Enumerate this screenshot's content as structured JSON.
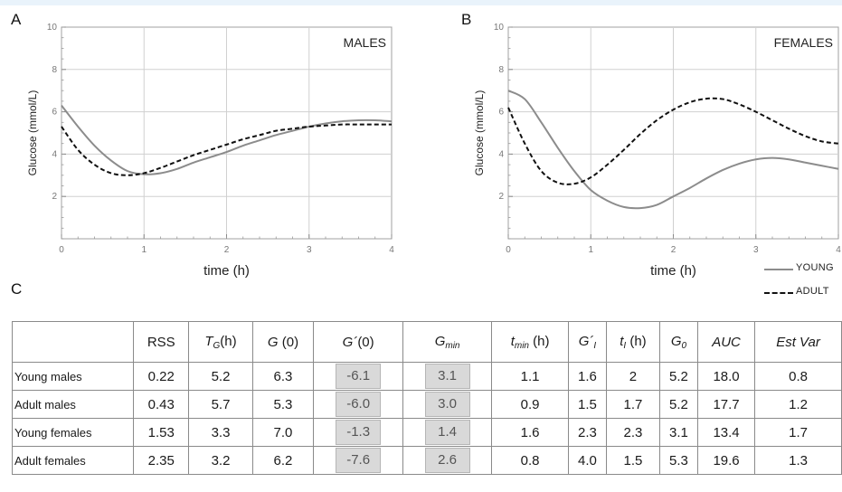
{
  "figure": {
    "panel_a_letter": "A",
    "panel_b_letter": "B",
    "panel_c_letter": "C"
  },
  "chart_data": [
    {
      "type": "line",
      "panel": "A",
      "annotation": "MALES",
      "xlabel": "time (h)",
      "ylabel": "Glucose (mmol/L)",
      "xlim": [
        0,
        4
      ],
      "ylim": [
        0,
        10
      ],
      "xticks": [
        "0",
        "1",
        "2",
        "3",
        "4"
      ],
      "yticks": [
        "2",
        "4",
        "6",
        "8",
        "10"
      ],
      "grid": true,
      "series": [
        {
          "name": "YOUNG",
          "style": "solid",
          "color": "#8c8c8c",
          "x": [
            0,
            0.2,
            0.4,
            0.6,
            0.8,
            1.0,
            1.2,
            1.4,
            1.6,
            1.8,
            2.0,
            2.2,
            2.4,
            2.6,
            2.8,
            3.0,
            3.2,
            3.4,
            3.6,
            3.8,
            4.0
          ],
          "y": [
            6.3,
            5.3,
            4.4,
            3.7,
            3.2,
            3.05,
            3.1,
            3.3,
            3.6,
            3.85,
            4.1,
            4.4,
            4.65,
            4.9,
            5.1,
            5.3,
            5.45,
            5.55,
            5.6,
            5.6,
            5.55
          ]
        },
        {
          "name": "ADULT",
          "style": "dashed",
          "color": "#111111",
          "x": [
            0,
            0.2,
            0.4,
            0.6,
            0.8,
            1.0,
            1.2,
            1.4,
            1.6,
            1.8,
            2.0,
            2.2,
            2.4,
            2.6,
            2.8,
            3.0,
            3.2,
            3.4,
            3.6,
            3.8,
            4.0
          ],
          "y": [
            5.3,
            4.2,
            3.5,
            3.1,
            3.0,
            3.1,
            3.35,
            3.65,
            3.95,
            4.2,
            4.45,
            4.7,
            4.9,
            5.1,
            5.2,
            5.3,
            5.35,
            5.4,
            5.4,
            5.4,
            5.4
          ]
        }
      ]
    },
    {
      "type": "line",
      "panel": "B",
      "annotation": "FEMALES",
      "xlabel": "time (h)",
      "ylabel": "Glucose (mmol/L)",
      "xlim": [
        0,
        4
      ],
      "ylim": [
        0,
        10
      ],
      "xticks": [
        "0",
        "1",
        "2",
        "3",
        "4"
      ],
      "yticks": [
        "2",
        "4",
        "6",
        "8",
        "10"
      ],
      "grid": true,
      "legend_position": "bottom-right",
      "series": [
        {
          "name": "YOUNG",
          "style": "solid",
          "color": "#8c8c8c",
          "x": [
            0,
            0.2,
            0.4,
            0.6,
            0.8,
            1.0,
            1.2,
            1.4,
            1.6,
            1.8,
            2.0,
            2.2,
            2.4,
            2.6,
            2.8,
            3.0,
            3.2,
            3.4,
            3.6,
            3.8,
            4.0
          ],
          "y": [
            7.0,
            6.6,
            5.5,
            4.3,
            3.2,
            2.3,
            1.8,
            1.5,
            1.45,
            1.6,
            2.0,
            2.4,
            2.85,
            3.25,
            3.55,
            3.75,
            3.82,
            3.75,
            3.6,
            3.45,
            3.3
          ]
        },
        {
          "name": "ADULT",
          "style": "dashed",
          "color": "#111111",
          "x": [
            0,
            0.2,
            0.4,
            0.6,
            0.8,
            1.0,
            1.2,
            1.4,
            1.6,
            1.8,
            2.0,
            2.2,
            2.4,
            2.6,
            2.8,
            3.0,
            3.2,
            3.4,
            3.6,
            3.8,
            4.0
          ],
          "y": [
            6.2,
            4.5,
            3.2,
            2.65,
            2.6,
            2.9,
            3.5,
            4.2,
            4.95,
            5.6,
            6.1,
            6.45,
            6.62,
            6.6,
            6.35,
            6.0,
            5.6,
            5.2,
            4.85,
            4.6,
            4.5
          ]
        }
      ]
    },
    {
      "type": "table",
      "panel": "C",
      "columns": [
        {
          "main": "RSS",
          "italic": false,
          "sub": "",
          "suffix": ""
        },
        {
          "main": "T",
          "italic": true,
          "sub": "G",
          "suffix": "(h)"
        },
        {
          "main": "G",
          "italic": true,
          "sub": "",
          "suffix": " (0)"
        },
        {
          "main": "G´",
          "italic": true,
          "sub": "",
          "suffix": "(0)"
        },
        {
          "main": "G",
          "italic": true,
          "sub": "min",
          "suffix": ""
        },
        {
          "main": "t",
          "italic": true,
          "sub": "min",
          "suffix": " (h)"
        },
        {
          "main": "G´",
          "italic": true,
          "sub": "I",
          "suffix": ""
        },
        {
          "main": "t",
          "italic": true,
          "sub": "I",
          "suffix": " (h)"
        },
        {
          "main": "G",
          "italic": true,
          "sub": "0",
          "suffix": ""
        },
        {
          "main": "AUC",
          "italic": true,
          "sub": "",
          "suffix": ""
        },
        {
          "main": "Est Var",
          "italic": true,
          "sub": "",
          "suffix": ""
        }
      ],
      "shaded_columns": [
        3,
        4
      ],
      "rows": [
        {
          "label": "Young males",
          "values": [
            "0.22",
            "5.2",
            "6.3",
            "-6.1",
            "3.1",
            "1.1",
            "1.6",
            "2",
            "5.2",
            "18.0",
            "0.8"
          ]
        },
        {
          "label": "Adult males",
          "values": [
            "0.43",
            "5.7",
            "5.3",
            "-6.0",
            "3.0",
            "0.9",
            "1.5",
            "1.7",
            "5.2",
            "17.7",
            "1.2"
          ]
        },
        {
          "label": "Young females",
          "values": [
            "1.53",
            "3.3",
            "7.0",
            "-1.3",
            "1.4",
            "1.6",
            "2.3",
            "2.3",
            "3.1",
            "13.4",
            "1.7"
          ]
        },
        {
          "label": "Adult females",
          "values": [
            "2.35",
            "3.2",
            "6.2",
            "-7.6",
            "2.6",
            "0.8",
            "4.0",
            "1.5",
            "5.3",
            "19.6",
            "1.3"
          ]
        }
      ]
    }
  ]
}
